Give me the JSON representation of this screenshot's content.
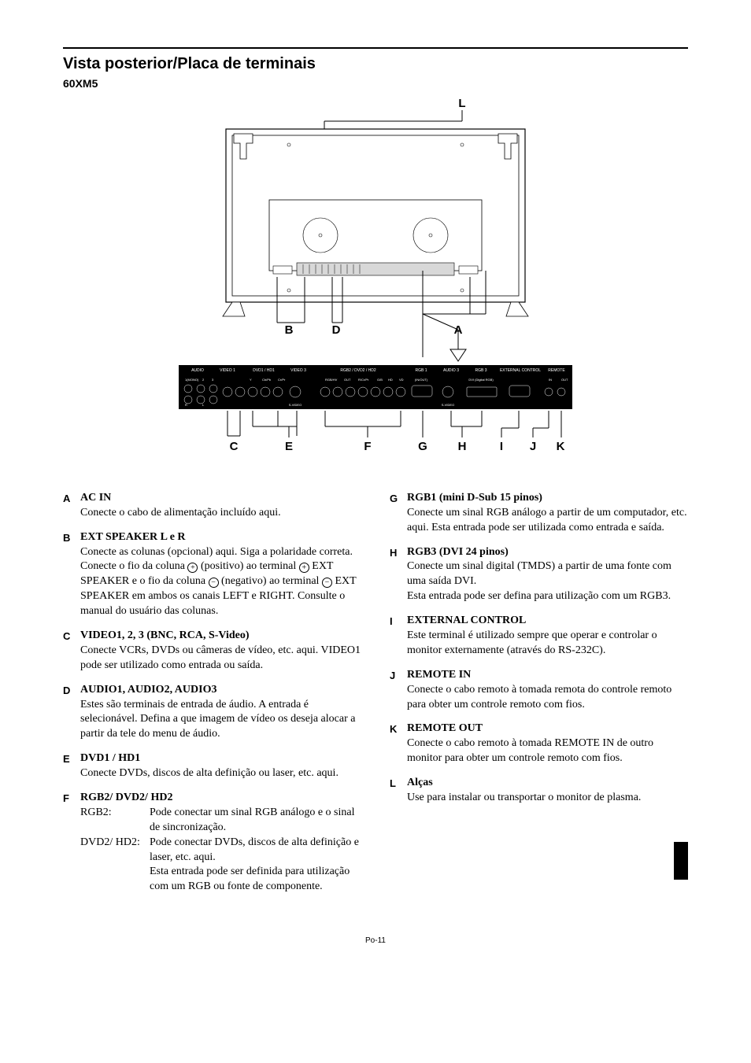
{
  "page": {
    "section_title": "Vista posterior/Placa de terminais",
    "model": "60XM5",
    "page_number": "Po-11"
  },
  "diagram": {
    "callouts": [
      "L",
      "B",
      "D",
      "A",
      "C",
      "E",
      "F",
      "G",
      "H",
      "I",
      "J",
      "K"
    ],
    "panel_labels": [
      "AUDIO",
      "VIDEO 1",
      "DVD1 / HD1",
      "VIDEO 3",
      "RGB2 / DVD2 / HD2",
      "RGB 1",
      "AUDIO 3",
      "RGB 3",
      "EXTERNAL CONTROL",
      "REMOTE"
    ],
    "sub_labels": [
      "1(MONO)",
      "2",
      "3",
      "R",
      "L",
      "Y",
      "Cb/Pb",
      "Cr/Pr",
      "S-VIDEO",
      "RGB/HV",
      "OUT",
      "R/Cr/Pr",
      "G/B",
      "HD",
      "VD",
      "(IN/OUT)",
      "DVI (Digital RGB)",
      "IN",
      "OUT"
    ],
    "colors": {
      "outline": "#000000",
      "fill": "#ffffff",
      "panel_fill": "#d8d8d8",
      "label_bg": "#000000",
      "label_text": "#ffffff"
    },
    "callout_font_weight": "bold",
    "callout_font_size": 15
  },
  "left_items": [
    {
      "letter": "A",
      "title": "AC IN",
      "desc": "Conecte o cabo de alimentação incluído aqui."
    },
    {
      "letter": "B",
      "title": "EXT SPEAKER L e R",
      "desc": "Conecte as colunas (opcional) aqui. Siga a polaridade correta. Conecte o fio da coluna ⊕ (positivo) ao terminal ⊕ EXT SPEAKER e o fio da coluna ⊖ (negativo) ao terminal ⊖ EXT SPEAKER em ambos os canais LEFT e RIGHT. Consulte o manual do usuário das colunas."
    },
    {
      "letter": "C",
      "title": "VIDEO1, 2, 3 (BNC, RCA, S-Video)",
      "desc": "Conecte VCRs, DVDs ou câmeras de vídeo, etc. aqui. VIDEO1 pode ser utilizado como entrada ou saída."
    },
    {
      "letter": "D",
      "title": "AUDIO1, AUDIO2, AUDIO3",
      "desc": "Estes são terminais de entrada de áudio. A entrada é selecionável. Defina a que imagem de vídeo os deseja alocar a partir da tele do menu de áudio."
    },
    {
      "letter": "E",
      "title": "DVD1 / HD1",
      "desc": "Conecte DVDs, discos de alta definição ou laser, etc. aqui."
    },
    {
      "letter": "F",
      "title": "RGB2/ DVD2/ HD2",
      "subs": [
        {
          "label": "RGB2:",
          "text": "Pode conectar um sinal RGB análogo e o sinal de sincronização."
        },
        {
          "label": "DVD2/ HD2:",
          "text": "Pode conectar DVDs, discos de alta definição e laser, etc. aqui.\nEsta entrada pode ser definida para utilização com um RGB ou fonte de componente."
        }
      ]
    }
  ],
  "right_items": [
    {
      "letter": "G",
      "title": "RGB1 (mini D-Sub 15 pinos)",
      "desc": "Conecte um sinal RGB análogo a partir de um computador, etc. aqui. Esta entrada pode ser utilizada como entrada e saída."
    },
    {
      "letter": "H",
      "title": "RGB3 (DVI 24 pinos)",
      "desc": "Conecte um sinal digital (TMDS) a partir de uma fonte com uma saída DVI.\nEsta entrada pode ser defina para utilização com um RGB3."
    },
    {
      "letter": "I",
      "title": "EXTERNAL CONTROL",
      "desc": "Este terminal é utilizado sempre que operar e controlar o monitor externamente (através do RS-232C)."
    },
    {
      "letter": "J",
      "title": "REMOTE IN",
      "desc": "Conecte o cabo remoto à tomada remota do controle remoto para obter um controle remoto com fios."
    },
    {
      "letter": "K",
      "title": "REMOTE OUT",
      "desc": "Conecte o cabo remoto à tomada REMOTE IN de outro monitor para obter um controle remoto com fios."
    },
    {
      "letter": "L",
      "title": "Alças",
      "desc": "Use para instalar ou transportar o monitor de plasma."
    }
  ]
}
